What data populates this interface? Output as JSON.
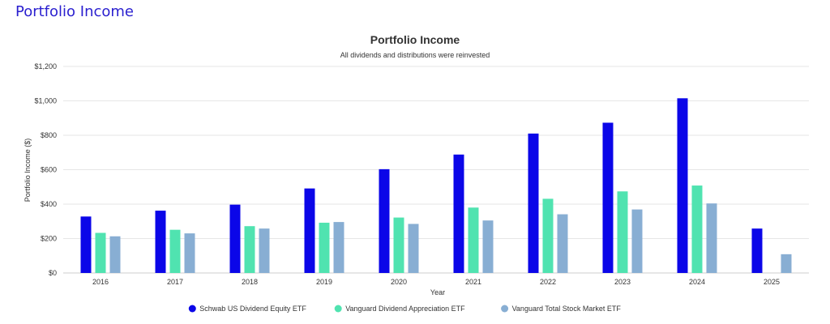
{
  "page": {
    "heading": "Portfolio Income"
  },
  "chart_data": {
    "type": "bar",
    "title": "Portfolio Income",
    "subtitle": "All dividends and distributions were reinvested",
    "xlabel": "Year",
    "ylabel": "Portfolio Income ($)",
    "ylim": [
      0,
      1200
    ],
    "yticks": [
      0,
      200,
      400,
      600,
      800,
      1000,
      1200
    ],
    "ytick_labels": [
      "$0",
      "$200",
      "$400",
      "$600",
      "$800",
      "$1,000",
      "$1,200"
    ],
    "grid": true,
    "legend_position": "bottom-center",
    "categories": [
      "2016",
      "2017",
      "2018",
      "2019",
      "2020",
      "2021",
      "2022",
      "2023",
      "2024",
      "2025"
    ],
    "series": [
      {
        "name": "Schwab US Dividend Equity ETF",
        "color": "#0b06e8",
        "values": [
          328,
          362,
          397,
          491,
          603,
          688,
          810,
          873,
          1015,
          258
        ]
      },
      {
        "name": "Vanguard Dividend Appreciation ETF",
        "color": "#50e3b0",
        "values": [
          233,
          251,
          272,
          292,
          322,
          380,
          431,
          474,
          508,
          null
        ]
      },
      {
        "name": "Vanguard Total Stock Market ETF",
        "color": "#88aed3",
        "values": [
          213,
          230,
          258,
          296,
          285,
          305,
          341,
          369,
          404,
          109
        ]
      }
    ]
  }
}
